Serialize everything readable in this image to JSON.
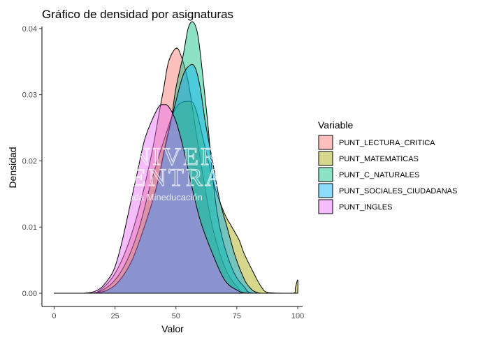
{
  "chart_data": {
    "type": "area",
    "title": "Gráfico de densidad por asignaturas",
    "xlabel": "Valor",
    "ylabel": "Densidad",
    "xlim": [
      -5,
      102
    ],
    "ylim": [
      -0.002,
      0.0403
    ],
    "x_ticks": [
      0,
      25,
      50,
      75,
      100
    ],
    "x_tick_labels": [
      "0",
      "25",
      "50",
      "75",
      "100"
    ],
    "y_ticks": [
      0,
      0.01,
      0.02,
      0.03,
      0.04
    ],
    "y_tick_labels": [
      "0.00",
      "0.01",
      "0.02",
      "0.03",
      "0.04"
    ],
    "grid": false,
    "legend": {
      "title": "Variable",
      "position": "right"
    },
    "series": [
      {
        "name": "PUNT_LECTURA_CRITICA",
        "color": "#F8766D",
        "points": [
          [
            0,
            0
          ],
          [
            15,
            0
          ],
          [
            20,
            0.0008
          ],
          [
            25,
            0.003
          ],
          [
            30,
            0.007
          ],
          [
            35,
            0.013
          ],
          [
            40,
            0.021
          ],
          [
            43,
            0.027
          ],
          [
            45,
            0.031
          ],
          [
            47,
            0.035
          ],
          [
            50,
            0.037
          ],
          [
            52,
            0.036
          ],
          [
            55,
            0.032
          ],
          [
            58,
            0.025
          ],
          [
            61,
            0.018
          ],
          [
            65,
            0.01
          ],
          [
            70,
            0.004
          ],
          [
            75,
            0.001
          ],
          [
            80,
            0
          ],
          [
            100,
            0
          ]
        ]
      },
      {
        "name": "PUNT_MATEMATICAS",
        "color": "#A3A500",
        "points": [
          [
            0,
            0
          ],
          [
            15,
            0
          ],
          [
            20,
            0.0005
          ],
          [
            25,
            0.002
          ],
          [
            30,
            0.005
          ],
          [
            35,
            0.01
          ],
          [
            40,
            0.017
          ],
          [
            45,
            0.023
          ],
          [
            50,
            0.028
          ],
          [
            55,
            0.029
          ],
          [
            58,
            0.028
          ],
          [
            62,
            0.022
          ],
          [
            66,
            0.016
          ],
          [
            70,
            0.012
          ],
          [
            73,
            0.01
          ],
          [
            76,
            0.008
          ],
          [
            78,
            0.006
          ],
          [
            82,
            0.003
          ],
          [
            85,
            0.001
          ],
          [
            88,
            0.0001
          ],
          [
            98,
            0
          ],
          [
            99,
            0.0008
          ],
          [
            100,
            0.002
          ],
          [
            100,
            0
          ]
        ]
      },
      {
        "name": "PUNT_C_NATURALES",
        "color": "#00BF7D",
        "points": [
          [
            0,
            0
          ],
          [
            15,
            0
          ],
          [
            22,
            0.0005
          ],
          [
            27,
            0.002
          ],
          [
            32,
            0.005
          ],
          [
            37,
            0.01
          ],
          [
            42,
            0.016
          ],
          [
            45,
            0.021
          ],
          [
            48,
            0.026
          ],
          [
            50,
            0.031
          ],
          [
            53,
            0.036
          ],
          [
            55,
            0.04
          ],
          [
            57,
            0.041
          ],
          [
            59,
            0.039
          ],
          [
            61,
            0.033
          ],
          [
            63,
            0.026
          ],
          [
            65,
            0.018
          ],
          [
            67,
            0.012
          ],
          [
            70,
            0.007
          ],
          [
            74,
            0.003
          ],
          [
            78,
            0.001
          ],
          [
            82,
            0
          ],
          [
            100,
            0
          ]
        ]
      },
      {
        "name": "PUNT_SOCIALES_CIUDADANAS",
        "color": "#00B0F6",
        "points": [
          [
            0,
            0
          ],
          [
            15,
            0
          ],
          [
            22,
            0.0005
          ],
          [
            27,
            0.002
          ],
          [
            32,
            0.005
          ],
          [
            37,
            0.01
          ],
          [
            42,
            0.016
          ],
          [
            46,
            0.023
          ],
          [
            50,
            0.029
          ],
          [
            53,
            0.033
          ],
          [
            56,
            0.0345
          ],
          [
            58,
            0.034
          ],
          [
            60,
            0.031
          ],
          [
            62,
            0.026
          ],
          [
            65,
            0.02
          ],
          [
            68,
            0.014
          ],
          [
            71,
            0.01
          ],
          [
            74,
            0.006
          ],
          [
            77,
            0.003
          ],
          [
            80,
            0.001
          ],
          [
            85,
            0
          ],
          [
            100,
            0
          ]
        ]
      },
      {
        "name": "PUNT_INGLES",
        "color": "#E76BF3",
        "points": [
          [
            0,
            0
          ],
          [
            12,
            0
          ],
          [
            18,
            0.0005
          ],
          [
            22,
            0.002
          ],
          [
            25,
            0.004
          ],
          [
            28,
            0.008
          ],
          [
            31,
            0.013
          ],
          [
            34,
            0.018
          ],
          [
            37,
            0.023
          ],
          [
            40,
            0.026
          ],
          [
            43,
            0.0282
          ],
          [
            45,
            0.0285
          ],
          [
            47,
            0.0282
          ],
          [
            50,
            0.026
          ],
          [
            53,
            0.022
          ],
          [
            56,
            0.017
          ],
          [
            60,
            0.011
          ],
          [
            65,
            0.006
          ],
          [
            70,
            0.002
          ],
          [
            75,
            0.0005
          ],
          [
            80,
            0
          ],
          [
            100,
            0
          ]
        ]
      }
    ],
    "watermark": {
      "line1": "UNIVERSIDAD",
      "line2": "CENTRAL",
      "line3": "Vigilada Mineducación"
    }
  }
}
